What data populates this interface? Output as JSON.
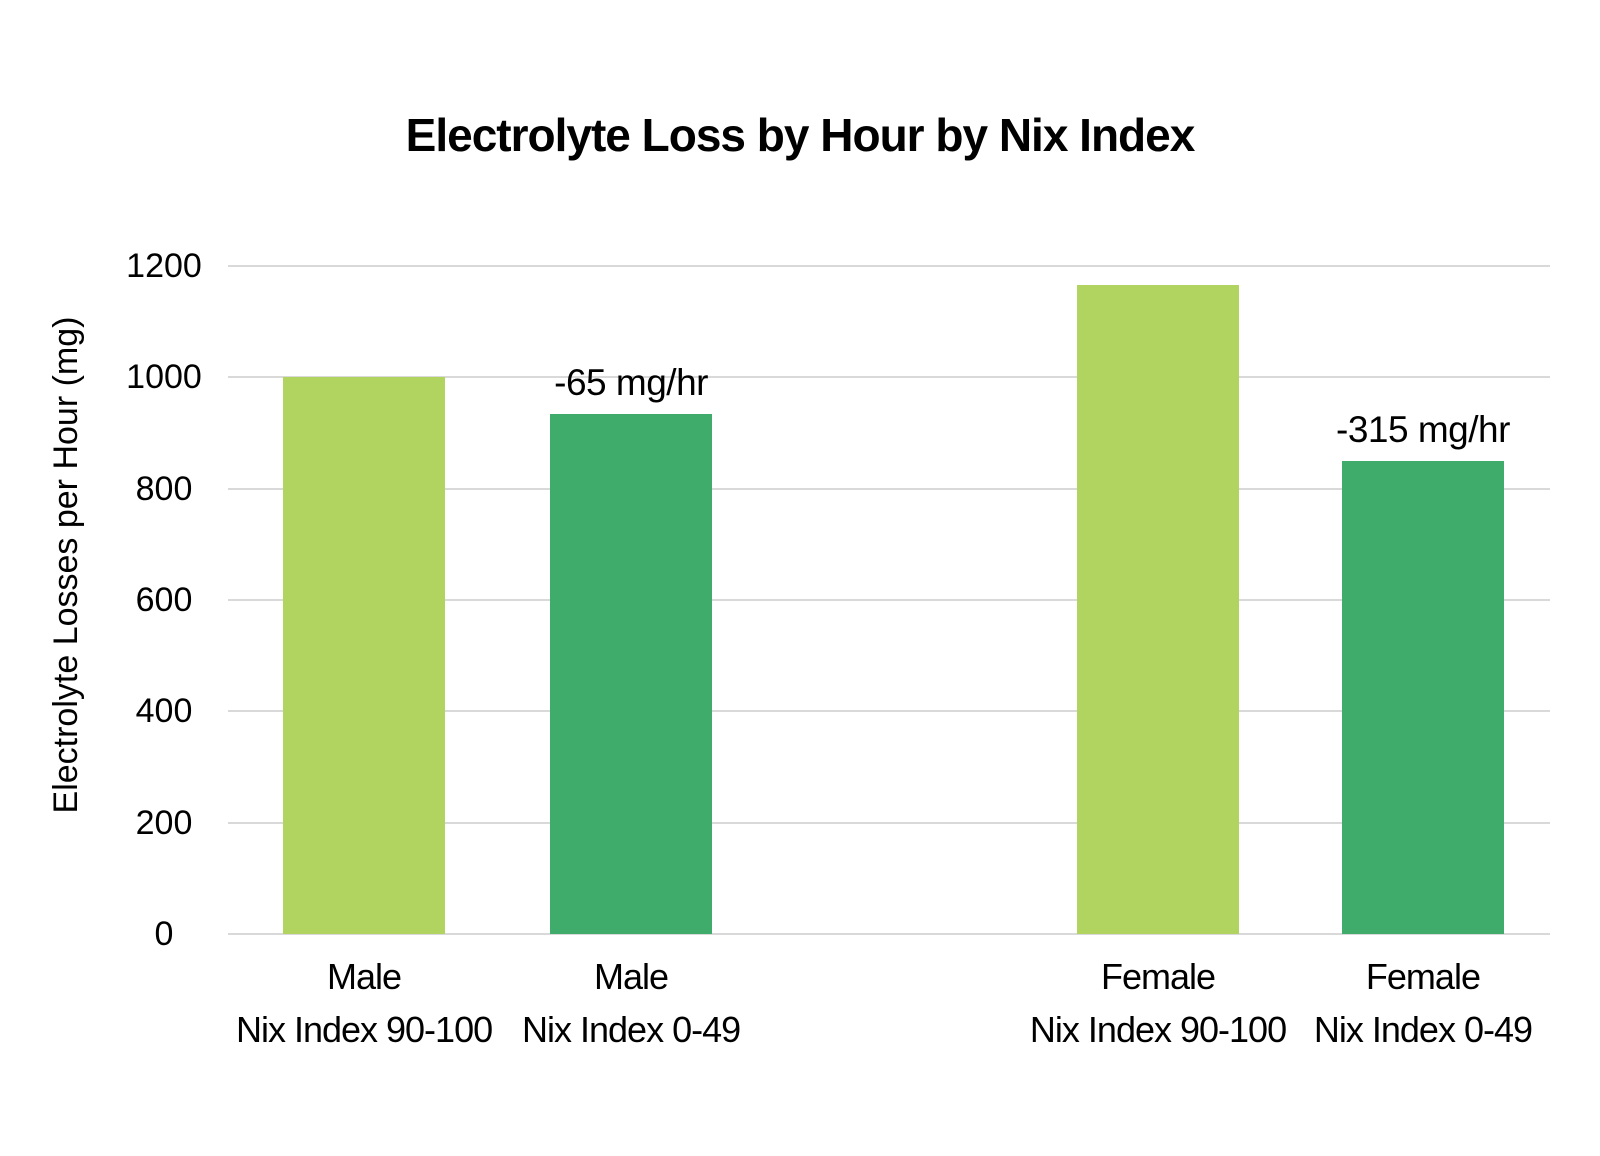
{
  "chart_data": {
    "type": "bar",
    "title": "Electrolyte Loss by Hour by Nix Index",
    "ylabel": "Electrolyte Losses per Hour (mg)",
    "xlabel": "",
    "ylim": [
      0,
      1200
    ],
    "yticks": [
      0,
      200,
      400,
      600,
      800,
      1000,
      1200
    ],
    "grid": "horizontal",
    "legend": "none",
    "bar_width_pct": 12.2,
    "bars": [
      {
        "slug": "male-nix-index-90-100",
        "category_line1": "Male",
        "category_line2": "Nix Index 90-100",
        "value": 1000,
        "color_key": "nix_90_100",
        "annotation": "",
        "center_pct": 10.29
      },
      {
        "slug": "male-nix-index-0-49",
        "category_line1": "Male",
        "category_line2": "Nix Index 0-49",
        "value": 935,
        "color_key": "nix_0_49",
        "annotation": "-65 mg/hr",
        "center_pct": 30.49
      },
      {
        "slug": "female-nix-index-90-100",
        "category_line1": "Female",
        "category_line2": "Nix Index 90-100",
        "value": 1165,
        "color_key": "nix_90_100",
        "annotation": "",
        "center_pct": 70.35
      },
      {
        "slug": "female-nix-index-0-49",
        "category_line1": "Female",
        "category_line2": "Nix Index 0-49",
        "value": 850,
        "color_key": "nix_0_49",
        "annotation": "-315 mg/hr",
        "center_pct": 90.39
      }
    ],
    "colors": {
      "nix_90_100": "#b1d35f",
      "nix_0_49": "#3fac6b",
      "gridline": "#d9d9d9",
      "text": "#000000",
      "background": "#ffffff"
    }
  }
}
